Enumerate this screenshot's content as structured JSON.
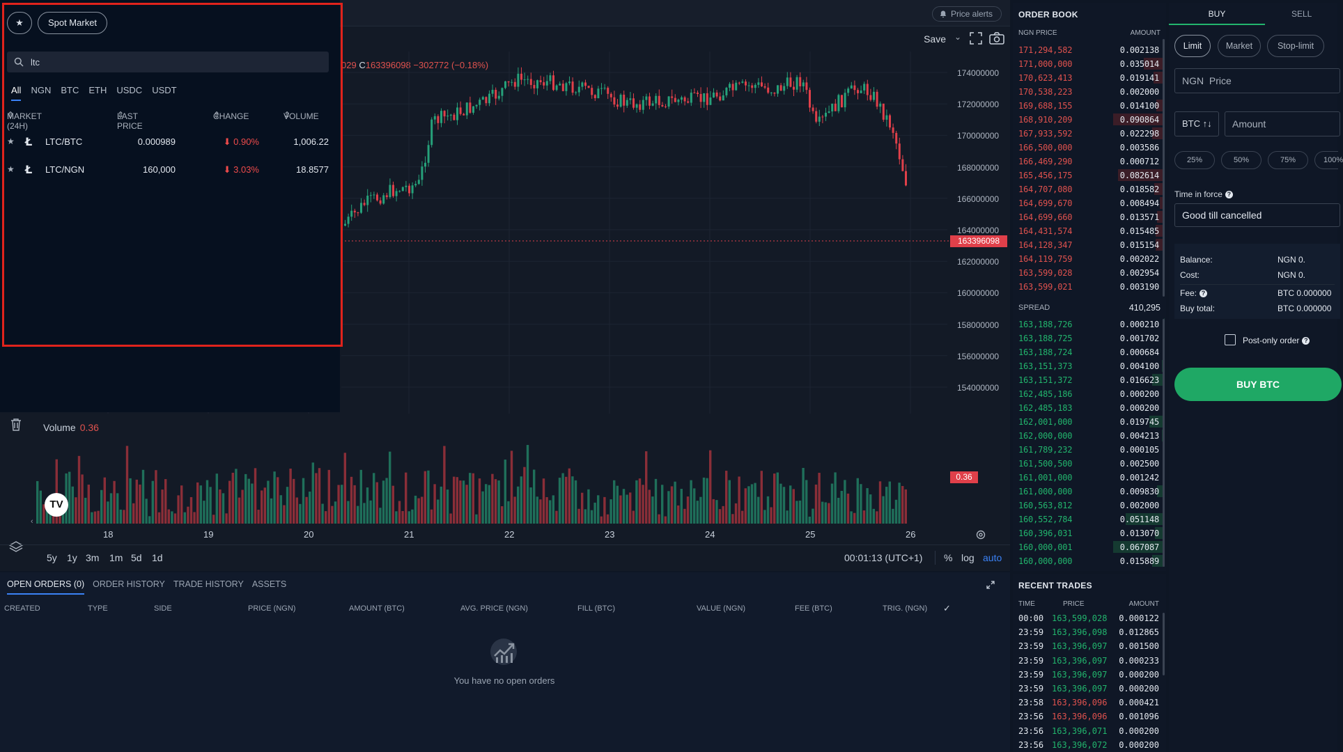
{
  "chart": {
    "price_alerts": "Price alerts",
    "save": "Save",
    "ohlc_open": "029",
    "ohlc_close_label": "C",
    "ohlc_close": "163396098",
    "ohlc_change": "−302772 (−0.18%)",
    "price_axis": [
      "174000000",
      "172000000",
      "170000000",
      "168000000",
      "166000000",
      "164000000",
      "162000000",
      "160000000",
      "158000000",
      "156000000",
      "154000000"
    ],
    "current_price_tag": "163396098",
    "volume_label": "Volume",
    "volume_value": "0.36",
    "volume_tag": "0.36",
    "dates": [
      "18",
      "19",
      "20",
      "21",
      "22",
      "23",
      "24",
      "25",
      "26"
    ],
    "ranges": [
      "5y",
      "1y",
      "3m",
      "1m",
      "5d",
      "1d"
    ],
    "time": "00:01:13 (UTC+1)",
    "pct": "%",
    "log": "log",
    "auto": "auto",
    "logo": "TV",
    "colors": {
      "up": "#26a17a",
      "down": "#e0404a"
    }
  },
  "market": {
    "fav": "★",
    "spot": "Spot Market",
    "search_value": "ltc",
    "tabs": [
      "All",
      "NGN",
      "BTC",
      "ETH",
      "USDC",
      "USDT"
    ],
    "cols": {
      "market": "MARKET (24H)",
      "last": "LAST PRICE",
      "change": "CHANGE",
      "volume": "VOLUME"
    },
    "rows": [
      {
        "pair": "LTC/BTC",
        "last": "0.000989",
        "change": "0.90%",
        "volume": "1,006.22"
      },
      {
        "pair": "LTC/NGN",
        "last": "160,000",
        "change": "3.03%",
        "volume": "18.8577"
      }
    ]
  },
  "orders": {
    "tabs": [
      "OPEN ORDERS (0)",
      "ORDER HISTORY",
      "TRADE HISTORY",
      "ASSETS"
    ],
    "cols": [
      "CREATED",
      "TYPE",
      "SIDE",
      "PRICE (NGN)",
      "AMOUNT (BTC)",
      "AVG. PRICE (NGN)",
      "FILL (BTC)",
      "VALUE (NGN)",
      "FEE (BTC)",
      "TRIG. (NGN)"
    ],
    "empty": "You have no open orders"
  },
  "orderbook": {
    "title": "ORDER BOOK",
    "col_price": "NGN PRICE",
    "col_amount": "AMOUNT",
    "spread_label": "SPREAD",
    "spread_value": "410,295",
    "asks": [
      [
        "171,294,582",
        "0.002138"
      ],
      [
        "171,000,000",
        "0.035014"
      ],
      [
        "170,623,413",
        "0.019141"
      ],
      [
        "170,538,223",
        "0.002000"
      ],
      [
        "169,688,155",
        "0.014100"
      ],
      [
        "168,910,209",
        "0.090864"
      ],
      [
        "167,933,592",
        "0.022298"
      ],
      [
        "166,500,000",
        "0.003586"
      ],
      [
        "166,469,290",
        "0.000712"
      ],
      [
        "165,456,175",
        "0.082614"
      ],
      [
        "164,707,080",
        "0.018582"
      ],
      [
        "164,699,670",
        "0.008494"
      ],
      [
        "164,699,660",
        "0.013571"
      ],
      [
        "164,431,574",
        "0.015485"
      ],
      [
        "164,128,347",
        "0.015154"
      ],
      [
        "164,119,759",
        "0.002022"
      ],
      [
        "163,599,028",
        "0.002954"
      ],
      [
        "163,599,021",
        "0.003190"
      ]
    ],
    "ask_fill": [
      0.03,
      0.4,
      0.22,
      0.03,
      0.16,
      1.0,
      0.25,
      0.04,
      0.01,
      0.91,
      0.2,
      0.09,
      0.15,
      0.17,
      0.17,
      0.02,
      0.03,
      0.04
    ],
    "bids": [
      [
        "163,188,726",
        "0.000210"
      ],
      [
        "163,188,725",
        "0.001702"
      ],
      [
        "163,188,724",
        "0.000684"
      ],
      [
        "163,151,373",
        "0.004100"
      ],
      [
        "163,151,372",
        "0.016623"
      ],
      [
        "162,485,186",
        "0.000200"
      ],
      [
        "162,485,183",
        "0.000200"
      ],
      [
        "162,001,000",
        "0.019745"
      ],
      [
        "162,000,000",
        "0.004213"
      ],
      [
        "161,789,232",
        "0.000105"
      ],
      [
        "161,500,500",
        "0.002500"
      ],
      [
        "161,001,000",
        "0.001242"
      ],
      [
        "161,000,000",
        "0.009830"
      ],
      [
        "160,563,812",
        "0.002000"
      ],
      [
        "160,552,784",
        "0.051148"
      ],
      [
        "160,396,031",
        "0.013070"
      ],
      [
        "160,000,001",
        "0.067087"
      ],
      [
        "160,000,000",
        "0.015889"
      ]
    ],
    "bid_fill": [
      0.01,
      0.03,
      0.01,
      0.06,
      0.25,
      0.01,
      0.01,
      0.3,
      0.06,
      0.01,
      0.04,
      0.02,
      0.15,
      0.03,
      0.76,
      0.19,
      1.0,
      0.24
    ]
  },
  "recent": {
    "title": "RECENT TRADES",
    "col_time": "TIME",
    "col_price": "PRICE",
    "col_amount": "AMOUNT",
    "rows": [
      [
        "00:00",
        "163,599,028",
        "0.000122",
        "up"
      ],
      [
        "23:59",
        "163,396,098",
        "0.012865",
        "up"
      ],
      [
        "23:59",
        "163,396,097",
        "0.001500",
        "up"
      ],
      [
        "23:59",
        "163,396,097",
        "0.000233",
        "up"
      ],
      [
        "23:59",
        "163,396,097",
        "0.000200",
        "up"
      ],
      [
        "23:59",
        "163,396,097",
        "0.000200",
        "up"
      ],
      [
        "23:58",
        "163,396,096",
        "0.000421",
        "down"
      ],
      [
        "23:56",
        "163,396,096",
        "0.001096",
        "down"
      ],
      [
        "23:56",
        "163,396,071",
        "0.000200",
        "up"
      ],
      [
        "23:56",
        "163,396,072",
        "0.000200",
        "up"
      ]
    ]
  },
  "form": {
    "buy": "BUY",
    "sell": "SELL",
    "types": [
      "Limit",
      "Market",
      "Stop-limit"
    ],
    "price_placeholder": "NGN  Price",
    "amount_placeholder": "Amount",
    "amount_currency": "BTC ↑↓",
    "percents": [
      "25%",
      "50%",
      "75%",
      "100%"
    ],
    "tif_label": "Time in force",
    "tif_value": "Good till cancelled",
    "balance_label": "Balance:",
    "balance_value": "NGN 0.",
    "cost_label": "Cost:",
    "cost_value": "NGN 0.",
    "fee_label": "Fee:",
    "fee_value": "BTC 0.000000",
    "total_label": "Buy total:",
    "total_value": "BTC 0.000000",
    "postonly": "Post-only order",
    "buy_button": "BUY BTC"
  }
}
